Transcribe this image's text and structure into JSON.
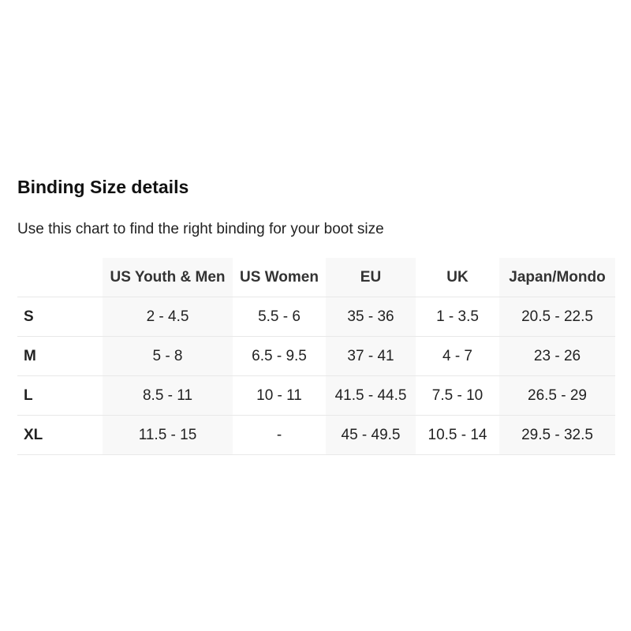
{
  "title": "Binding Size details",
  "subtitle": "Use this chart to find the right binding for your boot size",
  "headers": [
    "",
    "US Youth & Men",
    "US Women",
    "EU",
    "UK",
    "Japan/Mondo"
  ],
  "rows": [
    [
      "S",
      "2 - 4.5",
      "5.5 - 6",
      "35 - 36",
      "1 - 3.5",
      "20.5 - 22.5"
    ],
    [
      "M",
      "5 - 8",
      "6.5 - 9.5",
      "37 - 41",
      "4 - 7",
      "23 - 26"
    ],
    [
      "L",
      "8.5 - 11",
      "10 - 11",
      "41.5 - 44.5",
      "7.5 - 10",
      "26.5 - 29"
    ],
    [
      "XL",
      "11.5 - 15",
      "-",
      "45 - 49.5",
      "10.5 - 14",
      "29.5 - 32.5"
    ]
  ]
}
